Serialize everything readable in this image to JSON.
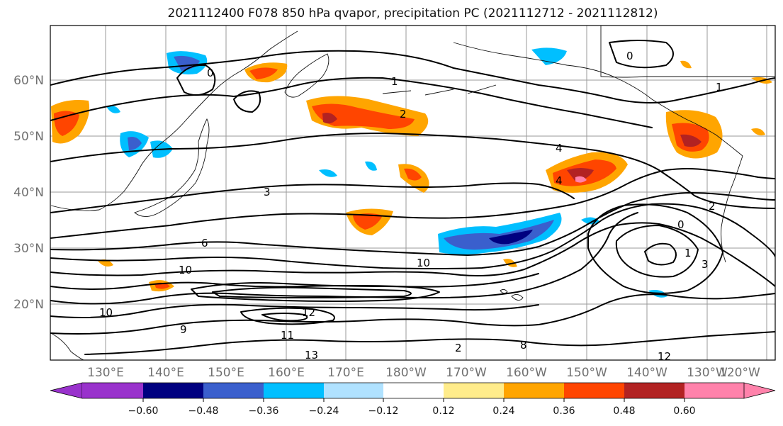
{
  "title": "2021112400 F078 850 hPa qvapor, precipitation PC (2021112712 - 2021112812)",
  "map": {
    "lat_labels": [
      "60°N",
      "50°N",
      "40°N",
      "30°N",
      "20°N"
    ],
    "lon_labels": [
      "130°E",
      "140°E",
      "150°E",
      "160°E",
      "170°E",
      "180°W",
      "170°W",
      "160°W",
      "150°W",
      "140°W",
      "130°W",
      "120°W"
    ],
    "contour_labels": [
      "0",
      "0",
      "1",
      "1",
      "2",
      "3",
      "4",
      "4",
      "6",
      "9",
      "10",
      "10",
      "12",
      "13",
      "2",
      "8",
      "0",
      "1",
      "2",
      "3",
      "10",
      "11",
      "12"
    ]
  },
  "colorbar": {
    "tick_labels": [
      "−0.60",
      "−0.48",
      "−0.36",
      "−0.24",
      "−0.12",
      "0.12",
      "0.24",
      "0.36",
      "0.48",
      "0.60"
    ],
    "colors": [
      "#9932cc",
      "#000080",
      "#3a5fcd",
      "#00bfff",
      "#b0e2ff",
      "#ffffff",
      "#ffec8b",
      "#ffa500",
      "#ff4500",
      "#b22222",
      "#ff82ab"
    ]
  },
  "colors": {
    "blue_shading": "#00bfff",
    "dark_blue_shading": "#3a5fcd",
    "navy_shading": "#000080",
    "orange_shading": "#ffa500",
    "red_shading": "#ff4500",
    "yellow_shading": "#ffec8b"
  }
}
